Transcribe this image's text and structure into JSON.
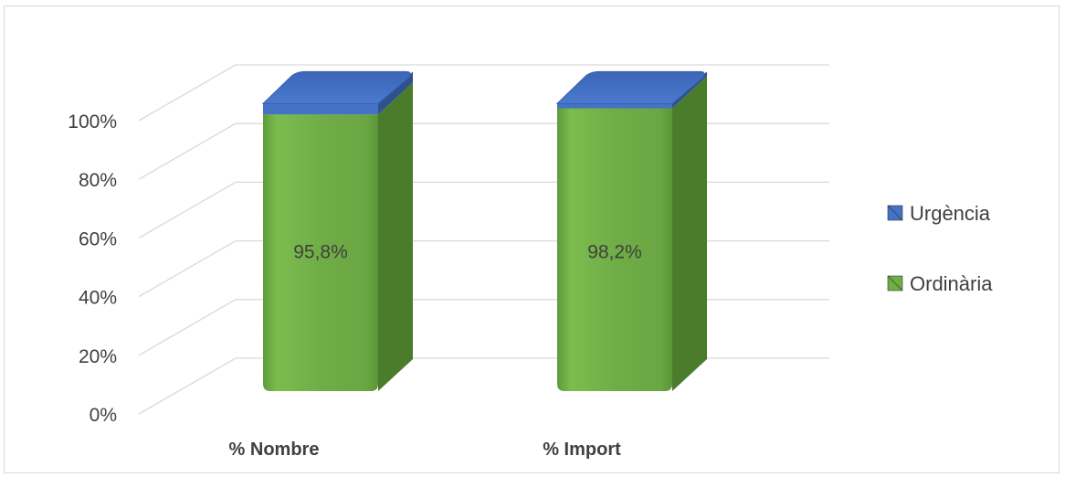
{
  "chart_data": {
    "type": "bar",
    "stacked": true,
    "percent_stacked": true,
    "three_d": true,
    "categories": [
      "% Nombre",
      "% Import"
    ],
    "series": [
      {
        "name": "Ordinària",
        "values": [
          95.8,
          98.2
        ],
        "color": "#70ad47",
        "labels": [
          "95,8%",
          "98,2%"
        ]
      },
      {
        "name": "Urgència",
        "values": [
          4.2,
          1.8
        ],
        "color": "#4472c4"
      }
    ],
    "yticks": [
      "0%",
      "20%",
      "40%",
      "60%",
      "80%",
      "100%"
    ],
    "ylim": [
      0,
      100
    ],
    "grid": true,
    "legend": "right"
  }
}
